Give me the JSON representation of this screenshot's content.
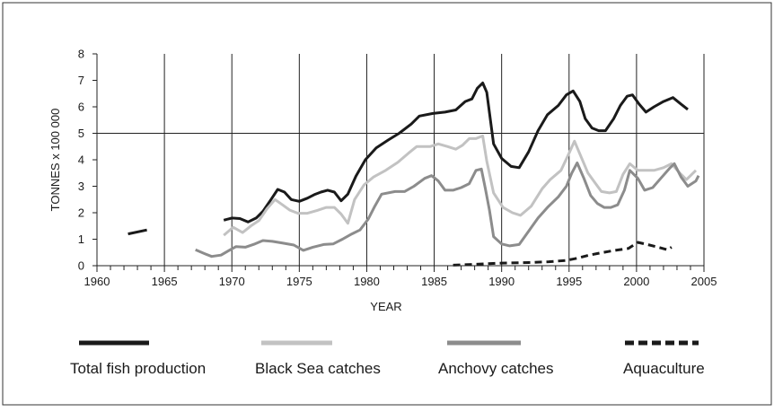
{
  "chart_data": {
    "type": "line",
    "title": "",
    "xlabel": "YEAR",
    "ylabel": "TONNES x 100 000",
    "xlim": [
      1960,
      2005
    ],
    "ylim": [
      0,
      8
    ],
    "x_ticks": [
      "1960",
      "1965",
      "1970",
      "1975",
      "1980",
      "1985",
      "1990",
      "1995",
      "2000",
      "2005"
    ],
    "y_ticks": [
      "0",
      "1",
      "2",
      "3",
      "4",
      "5",
      "6",
      "7",
      "8"
    ],
    "grid": "vertical lines every 5 years, horizontal line at 5",
    "legend": "bottom",
    "series": [
      {
        "name": "Total fish production",
        "color": "#1a1a1a",
        "style": "solid",
        "segments": [
          [
            [
              1962.3,
              1.2
            ],
            [
              1963.7,
              1.35
            ]
          ],
          [
            [
              1969.4,
              1.72
            ],
            [
              1970.0,
              1.8
            ],
            [
              1970.6,
              1.78
            ],
            [
              1971.2,
              1.65
            ],
            [
              1971.8,
              1.8
            ],
            [
              1972.3,
              2.05
            ],
            [
              1972.9,
              2.5
            ],
            [
              1973.4,
              2.88
            ],
            [
              1973.9,
              2.78
            ],
            [
              1974.4,
              2.5
            ],
            [
              1975.0,
              2.43
            ],
            [
              1975.6,
              2.55
            ],
            [
              1976.1,
              2.68
            ],
            [
              1976.6,
              2.78
            ],
            [
              1977.1,
              2.85
            ],
            [
              1977.6,
              2.78
            ],
            [
              1978.1,
              2.45
            ],
            [
              1978.6,
              2.7
            ],
            [
              1979.2,
              3.38
            ],
            [
              1979.9,
              4.0
            ],
            [
              1980.7,
              4.45
            ],
            [
              1981.6,
              4.75
            ],
            [
              1982.4,
              5.0
            ],
            [
              1983.3,
              5.35
            ],
            [
              1983.9,
              5.65
            ],
            [
              1984.9,
              5.75
            ],
            [
              1985.8,
              5.8
            ],
            [
              1986.6,
              5.88
            ],
            [
              1987.3,
              6.2
            ],
            [
              1987.8,
              6.3
            ],
            [
              1988.2,
              6.7
            ],
            [
              1988.6,
              6.9
            ],
            [
              1988.9,
              6.55
            ],
            [
              1989.4,
              4.6
            ],
            [
              1990.0,
              4.05
            ],
            [
              1990.7,
              3.75
            ],
            [
              1991.3,
              3.7
            ],
            [
              1992.0,
              4.3
            ],
            [
              1992.7,
              5.1
            ],
            [
              1993.4,
              5.7
            ],
            [
              1994.2,
              6.05
            ],
            [
              1994.8,
              6.45
            ],
            [
              1995.3,
              6.6
            ],
            [
              1995.8,
              6.2
            ],
            [
              1996.2,
              5.55
            ],
            [
              1996.7,
              5.2
            ],
            [
              1997.2,
              5.1
            ],
            [
              1997.7,
              5.1
            ],
            [
              1998.3,
              5.55
            ],
            [
              1998.8,
              6.05
            ],
            [
              1999.3,
              6.4
            ],
            [
              1999.7,
              6.45
            ],
            [
              2000.2,
              6.1
            ],
            [
              2000.7,
              5.8
            ],
            [
              2001.3,
              6.0
            ],
            [
              2002.0,
              6.2
            ],
            [
              2002.7,
              6.35
            ],
            [
              2003.3,
              6.1
            ],
            [
              2003.8,
              5.9
            ]
          ]
        ]
      },
      {
        "name": "Black Sea catches",
        "color": "#c2c2c2",
        "style": "solid",
        "segments": [
          [
            [
              1969.4,
              1.15
            ],
            [
              1970.1,
              1.45
            ],
            [
              1970.8,
              1.25
            ],
            [
              1971.4,
              1.5
            ],
            [
              1972.0,
              1.7
            ],
            [
              1972.6,
              2.15
            ],
            [
              1973.2,
              2.5
            ],
            [
              1973.8,
              2.28
            ],
            [
              1974.3,
              2.1
            ],
            [
              1974.9,
              1.98
            ],
            [
              1975.6,
              1.98
            ],
            [
              1976.3,
              2.08
            ],
            [
              1977.0,
              2.2
            ],
            [
              1977.6,
              2.2
            ],
            [
              1978.1,
              1.95
            ],
            [
              1978.6,
              1.6
            ],
            [
              1979.1,
              2.5
            ],
            [
              1979.8,
              3.05
            ],
            [
              1980.5,
              3.35
            ],
            [
              1981.4,
              3.6
            ],
            [
              1982.3,
              3.9
            ],
            [
              1983.1,
              4.25
            ],
            [
              1983.7,
              4.5
            ],
            [
              1984.7,
              4.5
            ],
            [
              1985.3,
              4.6
            ],
            [
              1986.0,
              4.5
            ],
            [
              1986.6,
              4.4
            ],
            [
              1987.1,
              4.55
            ],
            [
              1987.6,
              4.8
            ],
            [
              1988.1,
              4.8
            ],
            [
              1988.6,
              4.9
            ],
            [
              1988.9,
              3.95
            ],
            [
              1989.4,
              2.75
            ],
            [
              1990.1,
              2.2
            ],
            [
              1990.8,
              2.0
            ],
            [
              1991.4,
              1.9
            ],
            [
              1992.2,
              2.25
            ],
            [
              1993.0,
              2.9
            ],
            [
              1993.6,
              3.25
            ],
            [
              1994.4,
              3.6
            ],
            [
              1995.0,
              4.25
            ],
            [
              1995.4,
              4.7
            ],
            [
              1995.9,
              4.1
            ],
            [
              1996.4,
              3.5
            ],
            [
              1996.9,
              3.15
            ],
            [
              1997.4,
              2.8
            ],
            [
              1998.0,
              2.75
            ],
            [
              1998.5,
              2.8
            ],
            [
              1999.0,
              3.45
            ],
            [
              1999.5,
              3.85
            ],
            [
              2000.1,
              3.6
            ],
            [
              2000.6,
              3.6
            ],
            [
              2001.3,
              3.6
            ],
            [
              2002.0,
              3.7
            ],
            [
              2002.6,
              3.85
            ],
            [
              2003.2,
              3.5
            ],
            [
              2003.7,
              3.25
            ],
            [
              2004.4,
              3.6
            ]
          ]
        ]
      },
      {
        "name": "Anchovy catches",
        "color": "#8c8c8c",
        "style": "solid",
        "segments": [
          [
            [
              1967.3,
              0.6
            ],
            [
              1968.0,
              0.45
            ],
            [
              1968.5,
              0.35
            ],
            [
              1969.2,
              0.4
            ],
            [
              1969.7,
              0.55
            ],
            [
              1970.3,
              0.72
            ],
            [
              1971.0,
              0.7
            ],
            [
              1971.7,
              0.82
            ],
            [
              1972.3,
              0.95
            ],
            [
              1973.0,
              0.92
            ],
            [
              1973.8,
              0.85
            ],
            [
              1974.6,
              0.78
            ],
            [
              1975.3,
              0.58
            ],
            [
              1976.0,
              0.7
            ],
            [
              1976.8,
              0.8
            ],
            [
              1977.5,
              0.82
            ],
            [
              1978.2,
              1.0
            ],
            [
              1978.9,
              1.2
            ],
            [
              1979.5,
              1.35
            ],
            [
              1980.1,
              1.75
            ],
            [
              1980.6,
              2.25
            ],
            [
              1981.1,
              2.7
            ],
            [
              1982.1,
              2.8
            ],
            [
              1982.8,
              2.8
            ],
            [
              1983.5,
              3.0
            ],
            [
              1984.3,
              3.3
            ],
            [
              1984.8,
              3.4
            ],
            [
              1985.3,
              3.2
            ],
            [
              1985.8,
              2.85
            ],
            [
              1986.4,
              2.85
            ],
            [
              1987.0,
              2.95
            ],
            [
              1987.6,
              3.1
            ],
            [
              1988.1,
              3.6
            ],
            [
              1988.5,
              3.65
            ],
            [
              1988.8,
              2.9
            ],
            [
              1989.1,
              2.1
            ],
            [
              1989.4,
              1.1
            ],
            [
              1990.0,
              0.82
            ],
            [
              1990.6,
              0.75
            ],
            [
              1991.3,
              0.8
            ],
            [
              1992.0,
              1.3
            ],
            [
              1992.7,
              1.8
            ],
            [
              1993.4,
              2.2
            ],
            [
              1994.2,
              2.6
            ],
            [
              1994.8,
              3.0
            ],
            [
              1995.2,
              3.5
            ],
            [
              1995.6,
              3.88
            ],
            [
              1996.1,
              3.3
            ],
            [
              1996.6,
              2.65
            ],
            [
              1997.1,
              2.35
            ],
            [
              1997.6,
              2.2
            ],
            [
              1998.1,
              2.2
            ],
            [
              1998.6,
              2.3
            ],
            [
              1999.1,
              2.85
            ],
            [
              1999.5,
              3.6
            ],
            [
              2000.1,
              3.3
            ],
            [
              2000.6,
              2.85
            ],
            [
              2001.2,
              2.95
            ],
            [
              2001.8,
              3.3
            ],
            [
              2002.5,
              3.7
            ],
            [
              2002.8,
              3.85
            ],
            [
              2003.3,
              3.35
            ],
            [
              2003.8,
              3.0
            ],
            [
              2004.4,
              3.2
            ],
            [
              2004.6,
              3.4
            ]
          ]
        ]
      },
      {
        "name": "Aquaculture",
        "color": "#1a1a1a",
        "style": "dashed",
        "segments": [
          [
            [
              1986.4,
              0.02
            ],
            [
              1988.0,
              0.05
            ],
            [
              1990.0,
              0.1
            ],
            [
              1992.0,
              0.12
            ],
            [
              1993.5,
              0.15
            ],
            [
              1994.8,
              0.2
            ],
            [
              1995.6,
              0.28
            ],
            [
              1996.5,
              0.4
            ],
            [
              1997.5,
              0.5
            ],
            [
              1998.4,
              0.58
            ],
            [
              1999.4,
              0.65
            ],
            [
              2000.1,
              0.88
            ],
            [
              2000.8,
              0.8
            ],
            [
              2001.6,
              0.7
            ],
            [
              2002.3,
              0.6
            ],
            [
              2002.6,
              0.7
            ]
          ]
        ]
      }
    ]
  }
}
